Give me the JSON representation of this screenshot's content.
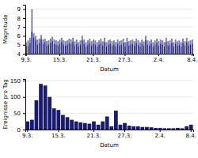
{
  "chart_data": [
    {
      "type": "bar",
      "xlabel": "Datum",
      "ylabel": "Magnitude",
      "categories": [
        "9.3.",
        null,
        null,
        null,
        null,
        null,
        null,
        null,
        null,
        null,
        null,
        null,
        null,
        null,
        null,
        null,
        null,
        null,
        "15.3.",
        null,
        null,
        null,
        null,
        null,
        null,
        null,
        null,
        null,
        null,
        null,
        null,
        null,
        null,
        null,
        null,
        null,
        "21.3.",
        null,
        null,
        null,
        null,
        null,
        null,
        null,
        null,
        null,
        null,
        null,
        null,
        null,
        null,
        null,
        null,
        "27.3.",
        null,
        null,
        null,
        null,
        null,
        null,
        null,
        null,
        null,
        null,
        null,
        null,
        null,
        null,
        null,
        null,
        null,
        "2.4.",
        null,
        null,
        null,
        null,
        null,
        null,
        null,
        null,
        null,
        null,
        null,
        null,
        null,
        null,
        null,
        null,
        null,
        "8.4."
      ],
      "series": [
        {
          "color": "#8080b8",
          "values": [
            5.3,
            5.5,
            5.8,
            6.5,
            6.3,
            6.0,
            5.6,
            5.7,
            6.1,
            5.6,
            5.7,
            5.4,
            5.5,
            5.7,
            5.9,
            5.6,
            5.5,
            5.4,
            5.6,
            5.8,
            5.5,
            5.4,
            5.5,
            5.7,
            5.6,
            5.8,
            5.4,
            5.6,
            5.3,
            5.5,
            6.0,
            5.6,
            5.3,
            5.5,
            5.7,
            5.4,
            5.6,
            5.5,
            5.3,
            5.5,
            5.7,
            5.4,
            5.8,
            5.3,
            5.5,
            5.6,
            5.4,
            5.5,
            5.3,
            5.6,
            5.4,
            5.5,
            5.7,
            5.3,
            5.8,
            5.4,
            5.5,
            5.6,
            5.4,
            5.7,
            5.5,
            5.3,
            5.6,
            5.4,
            6.0,
            5.5,
            5.4,
            5.6,
            5.3,
            5.5,
            5.7,
            5.4,
            5.6,
            5.5,
            5.3,
            5.8,
            5.4,
            5.5,
            5.7,
            5.3,
            5.6,
            5.4,
            5.5,
            5.3,
            5.7,
            5.4,
            5.8,
            5.4,
            5.5,
            5.6
          ]
        },
        {
          "color": "#1a1a6e",
          "values": [
            4.8,
            4.9,
            5.2,
            9.0,
            5.8,
            5.5,
            5.0,
            5.2,
            5.6,
            5.1,
            5.3,
            4.9,
            5.0,
            5.2,
            5.4,
            5.1,
            5.0,
            4.9,
            5.1,
            5.3,
            5.0,
            4.9,
            5.0,
            5.2,
            5.1,
            5.3,
            4.9,
            5.1,
            4.8,
            5.0,
            5.5,
            5.1,
            4.8,
            5.0,
            5.2,
            4.9,
            5.1,
            5.0,
            4.8,
            5.0,
            5.2,
            4.9,
            5.3,
            4.8,
            5.0,
            5.1,
            4.9,
            5.0,
            4.8,
            5.1,
            4.9,
            5.0,
            5.2,
            4.8,
            5.3,
            4.9,
            5.0,
            5.1,
            4.9,
            5.2,
            5.0,
            4.8,
            5.1,
            4.9,
            5.5,
            5.0,
            4.9,
            5.1,
            4.8,
            5.0,
            5.2,
            4.9,
            5.1,
            5.0,
            4.8,
            5.3,
            4.9,
            5.0,
            5.2,
            4.8,
            5.1,
            4.9,
            5.0,
            4.8,
            5.2,
            4.9,
            5.3,
            4.9,
            5.0,
            5.1
          ]
        }
      ],
      "ylim": [
        4,
        9.5
      ],
      "yticks": [
        4,
        5,
        6,
        7,
        8,
        9
      ],
      "grid": true
    },
    {
      "type": "bar",
      "xlabel": "Datum",
      "ylabel": "Ereignisse pro Tag",
      "categories": [
        "9.3.",
        null,
        null,
        null,
        null,
        null,
        null,
        "15.3.",
        null,
        null,
        null,
        null,
        null,
        null,
        null,
        "21.3.",
        null,
        null,
        null,
        null,
        null,
        null,
        "27.3.",
        null,
        null,
        null,
        null,
        null,
        null,
        null,
        "2.4.",
        null,
        null,
        null,
        null,
        null,
        null,
        "8.4."
      ],
      "values": [
        25,
        30,
        90,
        140,
        135,
        100,
        65,
        60,
        45,
        38,
        30,
        25,
        22,
        20,
        18,
        25,
        15,
        25,
        40,
        10,
        58,
        15,
        20,
        12,
        10,
        10,
        8,
        8,
        7,
        5,
        5,
        4,
        4,
        4,
        5,
        4,
        10,
        15
      ],
      "color": "#1a1a6e",
      "ylim": [
        0,
        155
      ],
      "yticks": [
        0,
        50,
        100,
        150
      ],
      "grid": true
    }
  ]
}
